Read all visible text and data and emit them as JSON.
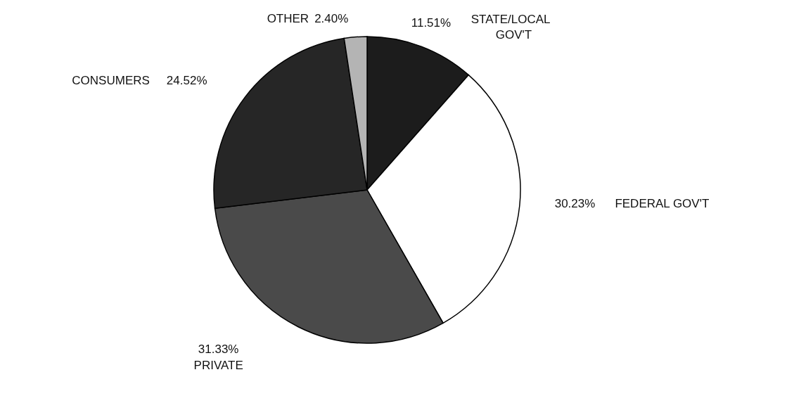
{
  "chart_data": {
    "type": "pie",
    "categories": [
      "STATE/LOCAL GOV'T",
      "FEDERAL GOV'T",
      "PRIVATE",
      "CONSUMERS",
      "OTHER"
    ],
    "values": [
      11.51,
      30.23,
      31.33,
      24.52,
      2.4
    ],
    "value_labels": [
      "11.51%",
      "30.23%",
      "31.33%",
      "24.52%",
      "2.40%"
    ],
    "colors": [
      "#1c1c1c",
      "#ffffff",
      "#4a4a4a",
      "#262626",
      "#b4b4b4"
    ],
    "legend": false
  }
}
